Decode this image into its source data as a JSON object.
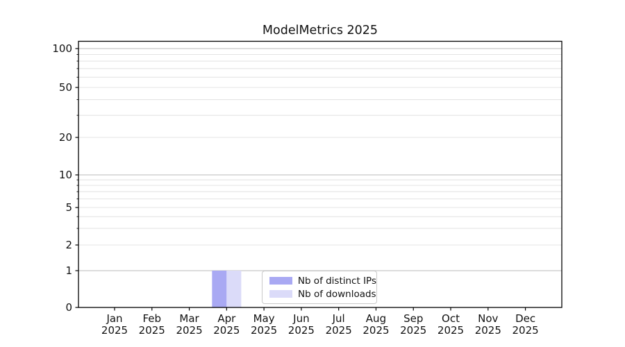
{
  "chart_data": {
    "type": "bar",
    "title": "ModelMetrics 2025",
    "yscale": "symlog",
    "grid": true,
    "xlabel": "",
    "ylabel": "",
    "x_axis": {
      "months": [
        "Jan",
        "Feb",
        "Mar",
        "Apr",
        "May",
        "Jun",
        "Jul",
        "Aug",
        "Sep",
        "Oct",
        "Nov",
        "Dec"
      ],
      "year": "2025"
    },
    "y_axis": {
      "tick_values": [
        100,
        50,
        20,
        10,
        5,
        2,
        1,
        0
      ],
      "tick_labels": [
        "100",
        "50",
        "20",
        "10",
        "5",
        "2",
        "1",
        "0"
      ],
      "range": [
        0,
        110
      ]
    },
    "series": [
      {
        "name": "Nb of distinct IPs",
        "color": "#a9a9f3",
        "values": [
          0,
          0,
          0,
          1,
          0,
          0,
          0,
          0,
          0,
          0,
          0,
          0
        ]
      },
      {
        "name": "Nb of downloads",
        "color": "#dbdbf9",
        "values": [
          0,
          0,
          0,
          1,
          0,
          0,
          0,
          0,
          0,
          0,
          0,
          0
        ]
      }
    ],
    "legend": {
      "position": "lower center inside",
      "border_color": "#c9c9c9"
    },
    "colors": {
      "major_grid": "#b9b9b9",
      "minor_grid": "#e4e4e4",
      "spine": "#000000"
    }
  }
}
